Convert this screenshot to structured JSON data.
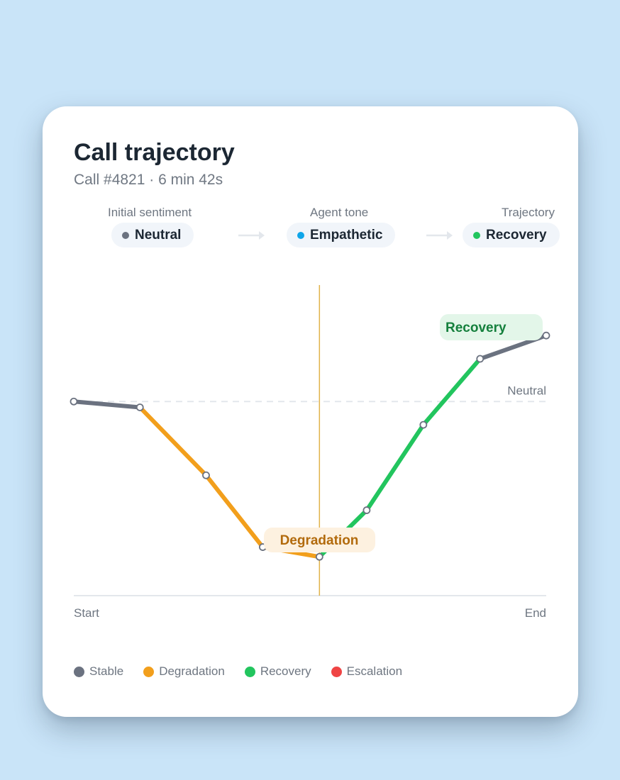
{
  "header": {
    "title": "Call trajectory",
    "subtitle": "Call #4821 · 6 min 42s"
  },
  "stages": [
    {
      "label": "Initial sentiment",
      "value": "Neutral",
      "color": "#6b7280"
    },
    {
      "label": "Agent tone",
      "value": "Empathetic",
      "color": "#0ea5e9"
    },
    {
      "label": "Trajectory",
      "value": "Recovery",
      "color": "#22c55e"
    }
  ],
  "icons": {
    "stage_arrow": "arrow-right-icon"
  },
  "chart_data": {
    "type": "line",
    "xlabel_start": "Start",
    "xlabel_end": "End",
    "baseline_label": "Neutral",
    "x": [
      0,
      0.14,
      0.28,
      0.4,
      0.52,
      0.62,
      0.74,
      0.86,
      1.0
    ],
    "y": [
      0.0,
      -0.03,
      -0.38,
      -0.75,
      -0.8,
      -0.56,
      -0.12,
      0.22,
      0.34
    ],
    "segment_phase": [
      "Stable",
      "Degradation",
      "Degradation",
      "Degradation",
      "Recovery",
      "Recovery",
      "Recovery",
      "Stable"
    ],
    "ylim": [
      -1.0,
      0.6
    ],
    "turning_point_x": 0.52,
    "annotations": [
      {
        "text": "Recovery",
        "phase": "Recovery",
        "near_x": 0.86
      },
      {
        "text": "Degradation",
        "phase": "Degradation",
        "near_x": 0.52
      }
    ],
    "colors": {
      "Stable": "#6b7280",
      "Degradation": "#f29f1c",
      "Recovery": "#22c55e",
      "Escalation": "#ef4444"
    }
  },
  "legend": [
    {
      "label": "Stable",
      "color": "#6b7280"
    },
    {
      "label": "Degradation",
      "color": "#f29f1c"
    },
    {
      "label": "Recovery",
      "color": "#22c55e"
    },
    {
      "label": "Escalation",
      "color": "#ef4444"
    }
  ]
}
